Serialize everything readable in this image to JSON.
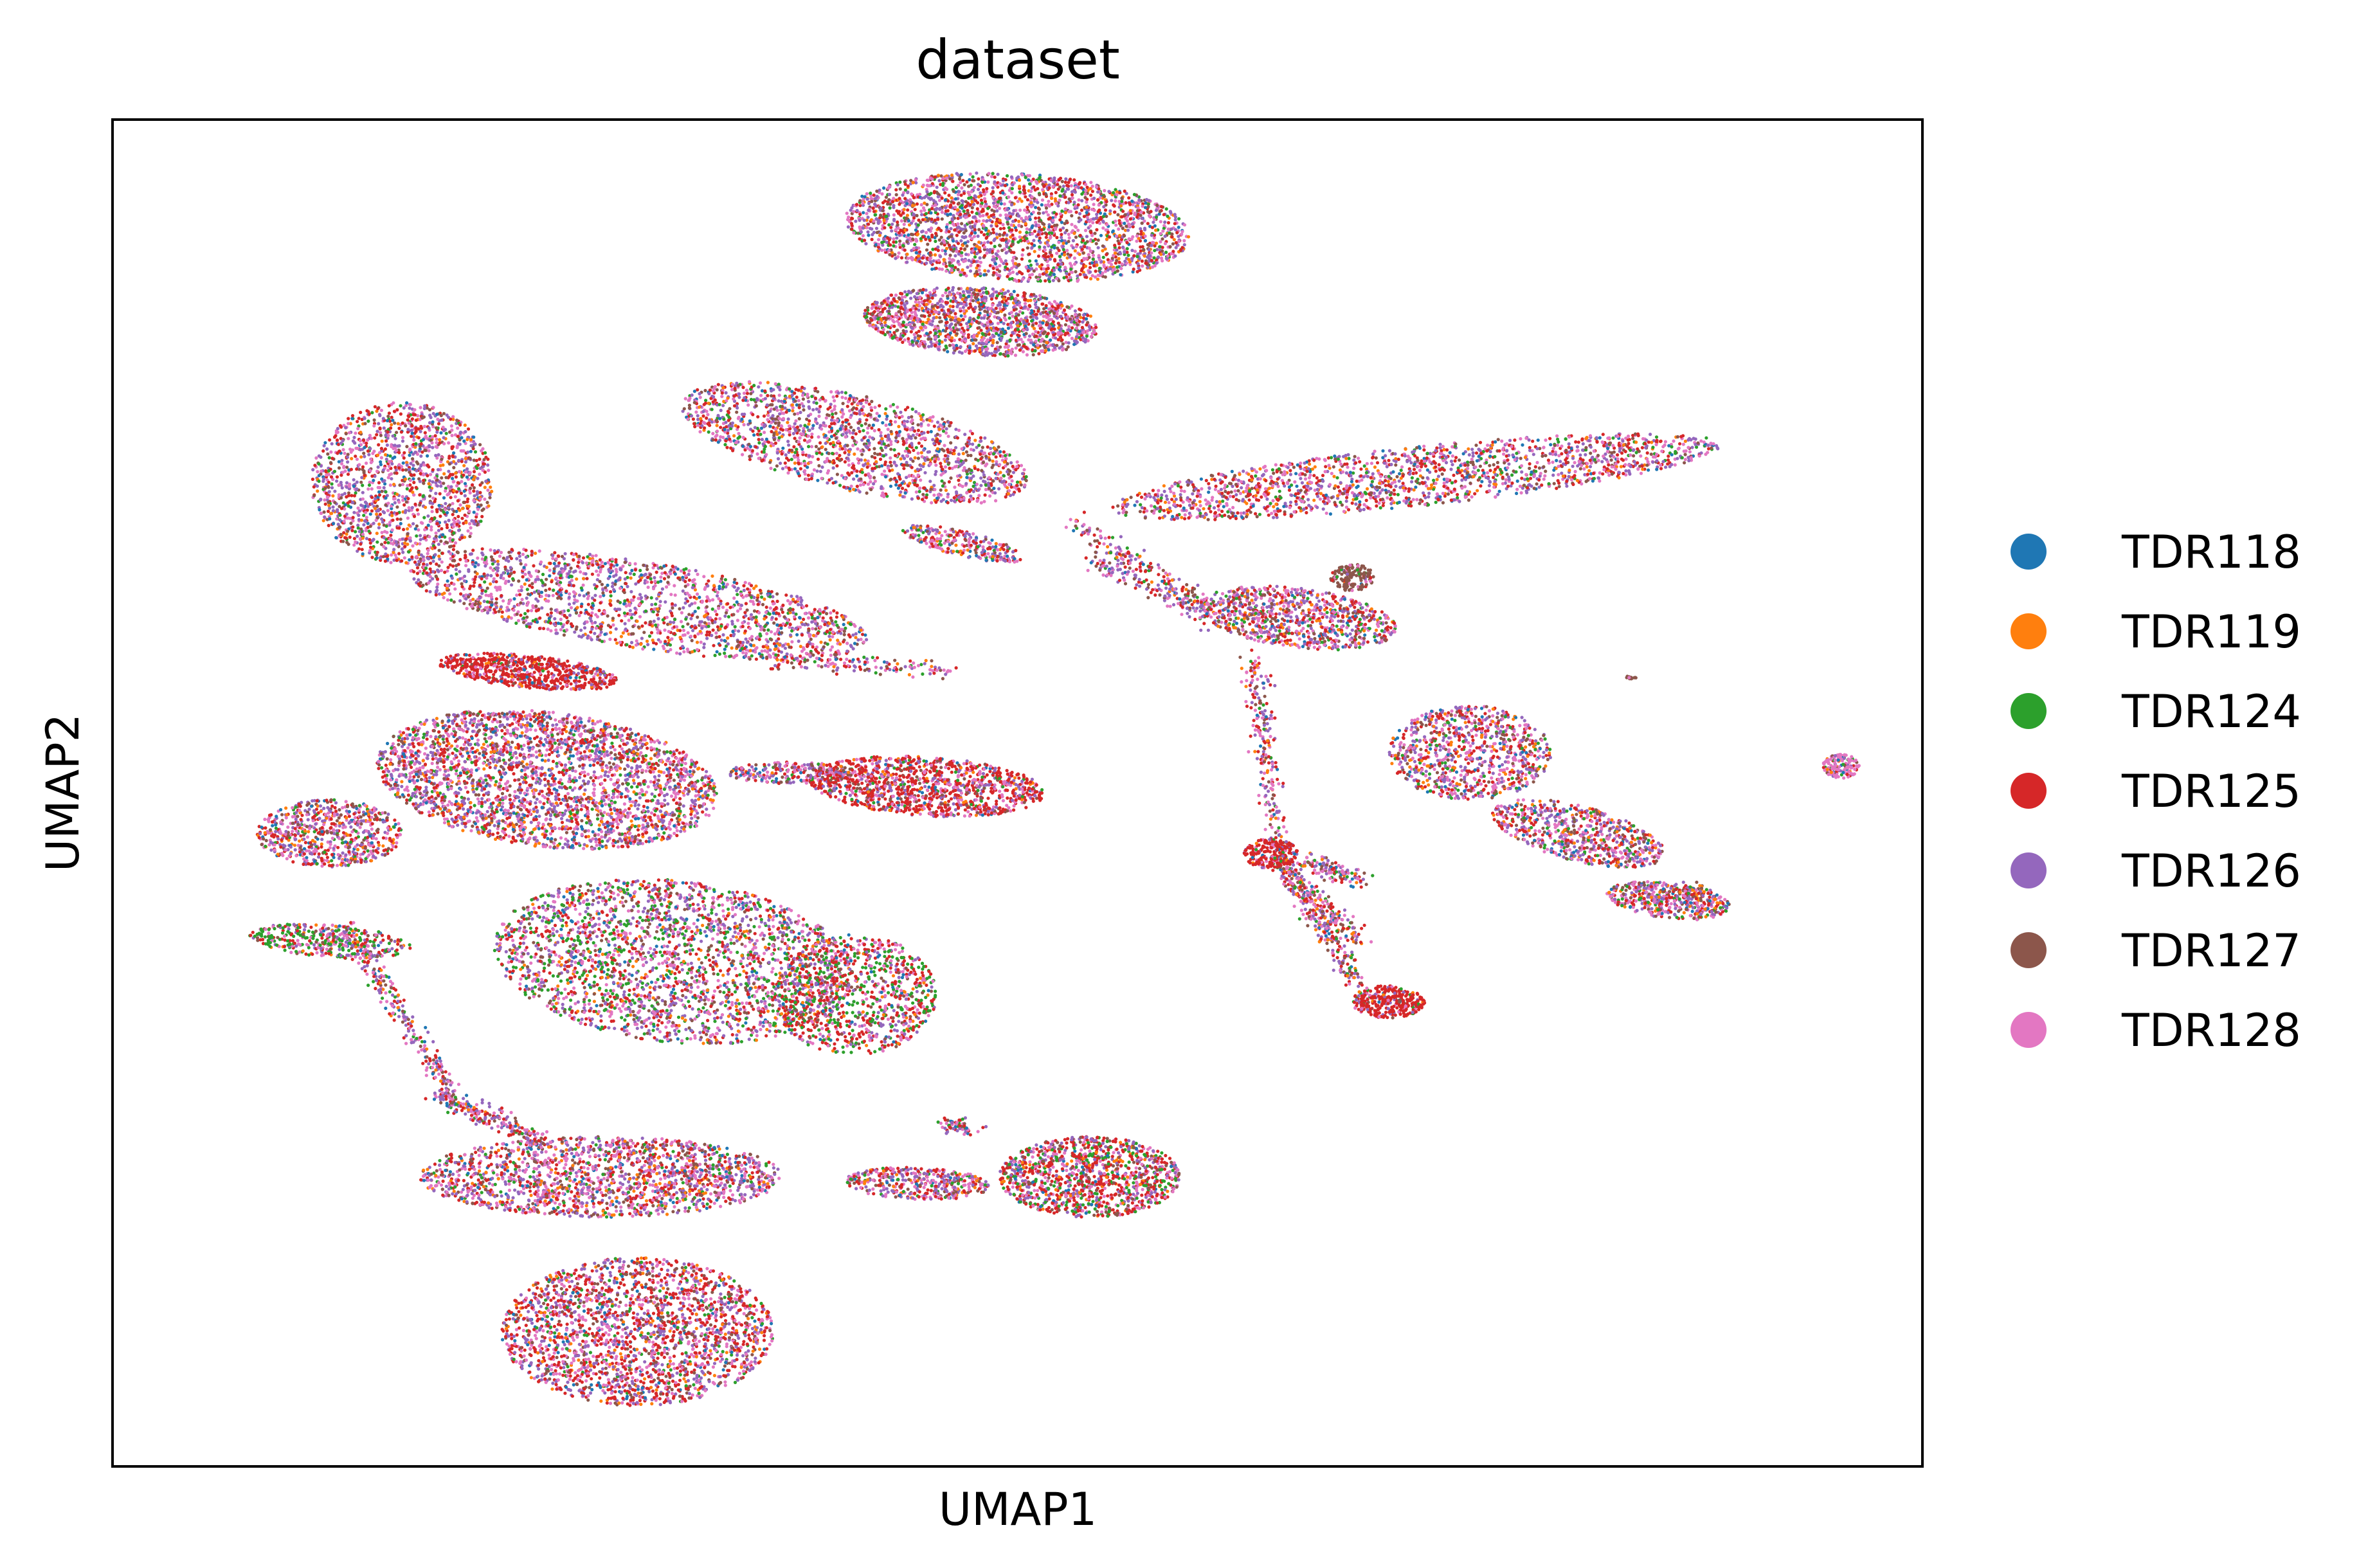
{
  "chart_data": {
    "type": "scatter",
    "title": "dataset",
    "xlabel": "UMAP1",
    "ylabel": "UMAP2",
    "xlim": [
      0,
      100
    ],
    "ylim": [
      0,
      100
    ],
    "ticks": "none",
    "grid": false,
    "legend_position": "right",
    "series": [
      {
        "name": "TDR118",
        "color": "#1f77b4"
      },
      {
        "name": "TDR119",
        "color": "#ff7f0e"
      },
      {
        "name": "TDR124",
        "color": "#2ca02c"
      },
      {
        "name": "TDR125",
        "color": "#d62728"
      },
      {
        "name": "TDR126",
        "color": "#9467bd"
      },
      {
        "name": "TDR127",
        "color": "#8c564b"
      },
      {
        "name": "TDR128",
        "color": "#e377c2"
      }
    ],
    "point_mix": [
      0.05,
      0.07,
      0.07,
      0.22,
      0.22,
      0.12,
      0.25
    ],
    "clusters": [
      {
        "x": 50.0,
        "y": 92.0,
        "rx": 9.5,
        "ry": 4.0,
        "rot": -5,
        "n": 2400,
        "bias": {}
      },
      {
        "x": 48.0,
        "y": 85.0,
        "rx": 6.5,
        "ry": 2.5,
        "rot": -5,
        "n": 1400,
        "bias": {}
      },
      {
        "x": 41.0,
        "y": 76.0,
        "rx": 10.0,
        "ry": 3.5,
        "rot": -18,
        "n": 1700,
        "bias": {}
      },
      {
        "x": 16.0,
        "y": 73.0,
        "rx": 5.0,
        "ry": 6.0,
        "rot": 0,
        "n": 1500,
        "bias": {}
      },
      {
        "x": 29.0,
        "y": 64.0,
        "rx": 13.0,
        "ry": 3.2,
        "rot": -12,
        "n": 1800,
        "bias": {}
      },
      {
        "x": 23.0,
        "y": 59.0,
        "rx": 5.0,
        "ry": 1.2,
        "rot": -8,
        "n": 700,
        "bias": {
          "3": 0.6
        }
      },
      {
        "x": 72.0,
        "y": 73.5,
        "rx": 17.0,
        "ry": 2.2,
        "rot": 8,
        "n": 1800,
        "bias": {}
      },
      {
        "x": 47.0,
        "y": 68.5,
        "rx": 3.5,
        "ry": 0.9,
        "rot": -18,
        "n": 250,
        "bias": {}
      },
      {
        "x": 65.5,
        "y": 63.0,
        "rx": 5.5,
        "ry": 2.2,
        "rot": -10,
        "n": 900,
        "bias": {}
      },
      {
        "x": 75.0,
        "y": 53.0,
        "rx": 4.5,
        "ry": 3.5,
        "rot": 0,
        "n": 900,
        "bias": {}
      },
      {
        "x": 81.0,
        "y": 47.0,
        "rx": 5.0,
        "ry": 2.0,
        "rot": -20,
        "n": 700,
        "bias": {}
      },
      {
        "x": 86.0,
        "y": 42.0,
        "rx": 3.5,
        "ry": 1.3,
        "rot": -10,
        "n": 450,
        "bias": {}
      },
      {
        "x": 45.0,
        "y": 50.5,
        "rx": 6.5,
        "ry": 2.2,
        "rot": -5,
        "n": 1200,
        "bias": {
          "3": 0.35
        }
      },
      {
        "x": 37.5,
        "y": 51.5,
        "rx": 3.5,
        "ry": 0.8,
        "rot": 0,
        "n": 250,
        "bias": {}
      },
      {
        "x": 64.0,
        "y": 45.5,
        "rx": 1.5,
        "ry": 1.1,
        "rot": 0,
        "n": 220,
        "bias": {
          "3": 0.7
        }
      },
      {
        "x": 70.5,
        "y": 34.5,
        "rx": 2.0,
        "ry": 1.2,
        "rot": 0,
        "n": 320,
        "bias": {
          "3": 0.6
        }
      },
      {
        "x": 68.5,
        "y": 66.0,
        "rx": 1.2,
        "ry": 1.0,
        "rot": 0,
        "n": 150,
        "bias": {
          "5": 0.7
        }
      },
      {
        "x": 24.0,
        "y": 51.0,
        "rx": 9.5,
        "ry": 5.0,
        "rot": -10,
        "n": 3000,
        "bias": {}
      },
      {
        "x": 12.0,
        "y": 47.0,
        "rx": 4.0,
        "ry": 2.5,
        "rot": 0,
        "n": 700,
        "bias": {}
      },
      {
        "x": 31.0,
        "y": 37.5,
        "rx": 10.0,
        "ry": 6.0,
        "rot": -10,
        "n": 2600,
        "bias": {
          "2": 0.12
        }
      },
      {
        "x": 41.0,
        "y": 35.0,
        "rx": 4.5,
        "ry": 4.5,
        "rot": 0,
        "n": 1000,
        "bias": {
          "2": 0.2,
          "3": 0.2
        }
      },
      {
        "x": 12.0,
        "y": 39.0,
        "rx": 4.5,
        "ry": 1.2,
        "rot": -6,
        "n": 400,
        "bias": {
          "2": 0.3
        }
      },
      {
        "x": 27.0,
        "y": 21.5,
        "rx": 10.0,
        "ry": 3.0,
        "rot": 0,
        "n": 1800,
        "bias": {}
      },
      {
        "x": 29.0,
        "y": 10.0,
        "rx": 7.5,
        "ry": 5.5,
        "rot": 0,
        "n": 2300,
        "bias": {
          "3": 0.15
        }
      },
      {
        "x": 54.0,
        "y": 21.5,
        "rx": 5.0,
        "ry": 3.0,
        "rot": 0,
        "n": 1200,
        "bias": {
          "3": 0.2,
          "2": 0.12
        }
      },
      {
        "x": 44.5,
        "y": 21.0,
        "rx": 4.0,
        "ry": 1.2,
        "rot": -3,
        "n": 400,
        "bias": {}
      },
      {
        "x": 95.5,
        "y": 52.0,
        "rx": 1.0,
        "ry": 0.9,
        "rot": 0,
        "n": 160,
        "bias": {
          "6": 0.6
        }
      },
      {
        "x": 84.0,
        "y": 58.5,
        "rx": 0.4,
        "ry": 0.15,
        "rot": -25,
        "n": 12,
        "bias": {
          "5": 0.9
        }
      }
    ],
    "strands": [
      {
        "x1": 53.0,
        "y1": 70.0,
        "x2": 61.0,
        "y2": 63.5,
        "n": 180
      },
      {
        "x1": 63.0,
        "y1": 60.0,
        "x2": 64.5,
        "y2": 46.0,
        "n": 220
      },
      {
        "x1": 64.5,
        "y1": 45.0,
        "x2": 69.0,
        "y2": 35.5,
        "n": 260
      },
      {
        "x1": 65.0,
        "y1": 44.0,
        "x2": 69.0,
        "y2": 39.0,
        "n": 160
      },
      {
        "x1": 66.0,
        "y1": 45.0,
        "x2": 69.0,
        "y2": 43.5,
        "n": 120
      },
      {
        "x1": 54.0,
        "y1": 67.5,
        "x2": 60.5,
        "y2": 63.0,
        "n": 120
      },
      {
        "x1": 36.0,
        "y1": 60.0,
        "x2": 46.5,
        "y2": 59.0,
        "n": 150
      },
      {
        "x1": 13.0,
        "y1": 40.0,
        "x2": 19.0,
        "y2": 27.0,
        "n": 260
      },
      {
        "x1": 18.0,
        "y1": 27.5,
        "x2": 24.0,
        "y2": 24.0,
        "n": 200
      },
      {
        "x1": 85.0,
        "y1": 42.0,
        "x2": 88.0,
        "y2": 43.0,
        "n": 60
      },
      {
        "x1": 46.0,
        "y1": 25.5,
        "x2": 47.5,
        "y2": 25.0,
        "n": 60
      }
    ]
  }
}
